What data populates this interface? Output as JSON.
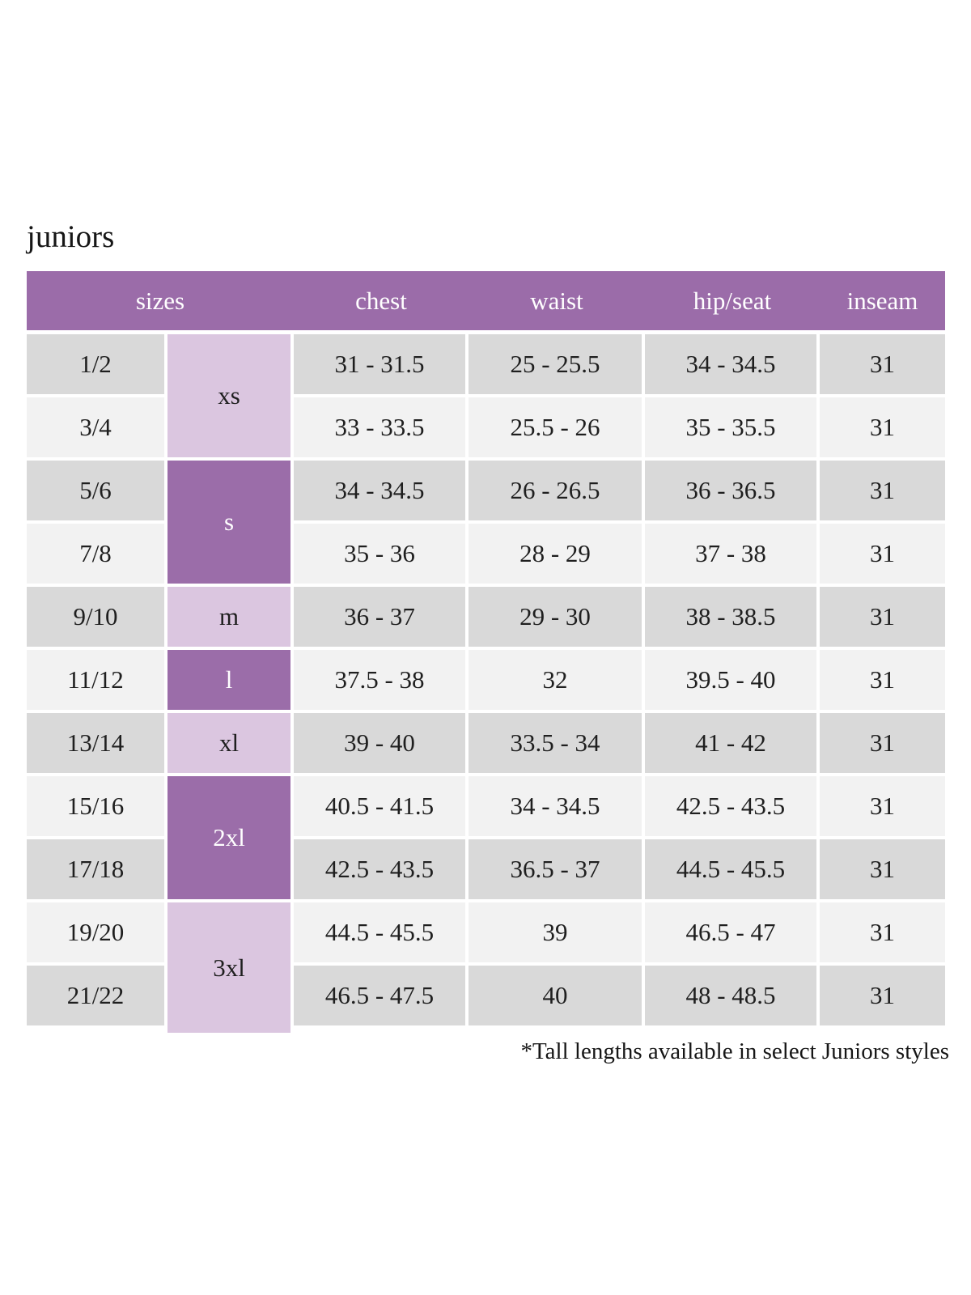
{
  "page": {
    "title": "juniors",
    "footnote": "*Tall lengths available in select Juniors styles"
  },
  "colors": {
    "header_bg": "#9b6ca9",
    "size_dark": "#9b6da9",
    "size_light": "#dbc6e0",
    "row_dark": "#d9d9d9",
    "row_light": "#f2f2f2",
    "header_text": "#ffffff",
    "body_text": "#1f1f1f"
  },
  "chart_data": {
    "type": "table",
    "title": "juniors",
    "columns": [
      "sizes",
      "chest",
      "waist",
      "hip/seat",
      "inseam"
    ],
    "size_groups": [
      {
        "label": "xs",
        "rows": 2,
        "shade": "light"
      },
      {
        "label": "s",
        "rows": 2,
        "shade": "dark"
      },
      {
        "label": "m",
        "rows": 1,
        "shade": "light"
      },
      {
        "label": "l",
        "rows": 1,
        "shade": "dark"
      },
      {
        "label": "xl",
        "rows": 1,
        "shade": "light"
      },
      {
        "label": "2xl",
        "rows": 2,
        "shade": "dark"
      },
      {
        "label": "3xl",
        "rows": 2,
        "shade": "light"
      }
    ],
    "rows": [
      {
        "size": "1/2",
        "chest": "31 - 31.5",
        "waist": "25 - 25.5",
        "hip_seat": "34 - 34.5",
        "inseam": "31"
      },
      {
        "size": "3/4",
        "chest": "33 - 33.5",
        "waist": "25.5 - 26",
        "hip_seat": "35 - 35.5",
        "inseam": "31"
      },
      {
        "size": "5/6",
        "chest": "34 - 34.5",
        "waist": "26 - 26.5",
        "hip_seat": "36 - 36.5",
        "inseam": "31"
      },
      {
        "size": "7/8",
        "chest": "35 - 36",
        "waist": "28 - 29",
        "hip_seat": "37 - 38",
        "inseam": "31"
      },
      {
        "size": "9/10",
        "chest": "36 - 37",
        "waist": "29 - 30",
        "hip_seat": "38 - 38.5",
        "inseam": "31"
      },
      {
        "size": "11/12",
        "chest": "37.5 - 38",
        "waist": "32",
        "hip_seat": "39.5 - 40",
        "inseam": "31"
      },
      {
        "size": "13/14",
        "chest": "39 - 40",
        "waist": "33.5 - 34",
        "hip_seat": "41 - 42",
        "inseam": "31"
      },
      {
        "size": "15/16",
        "chest": "40.5 - 41.5",
        "waist": "34 - 34.5",
        "hip_seat": "42.5 - 43.5",
        "inseam": "31"
      },
      {
        "size": "17/18",
        "chest": "42.5 - 43.5",
        "waist": "36.5 - 37",
        "hip_seat": "44.5 - 45.5",
        "inseam": "31"
      },
      {
        "size": "19/20",
        "chest": "44.5 - 45.5",
        "waist": "39",
        "hip_seat": "46.5 - 47",
        "inseam": "31"
      },
      {
        "size": "21/22",
        "chest": "46.5 - 47.5",
        "waist": "40",
        "hip_seat": "48 - 48.5",
        "inseam": "31"
      }
    ],
    "footnote": "*Tall lengths available in select Juniors styles",
    "layout": {
      "grid": "off",
      "header_position": "top",
      "zebra_striping": true
    }
  }
}
